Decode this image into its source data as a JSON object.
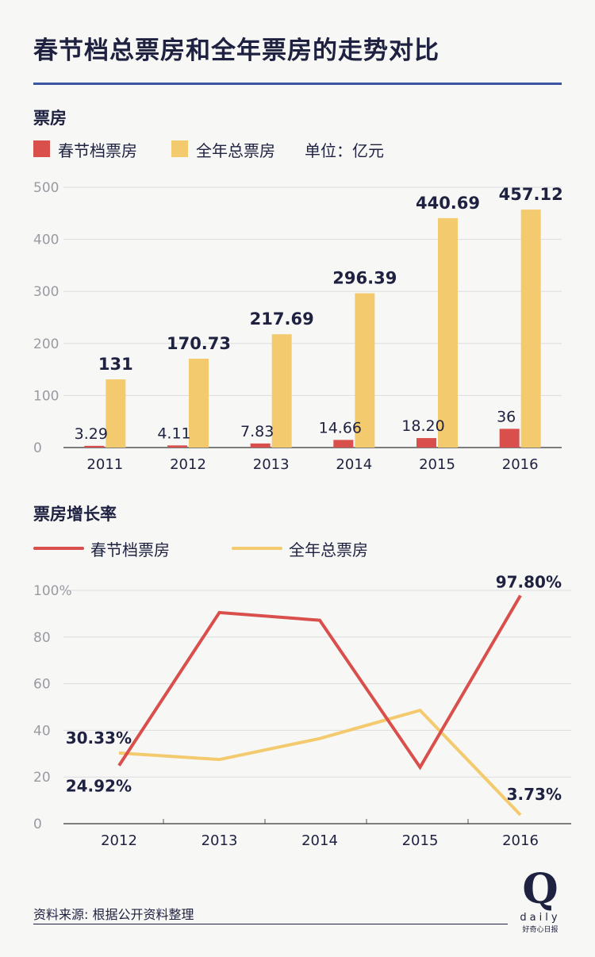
{
  "title": "春节档总票房和全年票房的走势对比",
  "colors": {
    "spring": "#d94f4c",
    "annual": "#f3cb6e",
    "accent": "#3b55a3",
    "text": "#1e2140"
  },
  "bar_section": {
    "title": "票房",
    "legend": {
      "spring": "春节档票房",
      "annual": "全年总票房",
      "unit": "单位：亿元"
    }
  },
  "line_section": {
    "title": "票房增长率",
    "legend": {
      "spring": "春节档票房",
      "annual": "全年总票房"
    }
  },
  "footer": {
    "source": "资料来源: 根据公开资料整理",
    "logo_mark": "Q",
    "logo_word": "daily",
    "logo_sub": "好奇心日报"
  },
  "chart_data": [
    {
      "type": "bar",
      "title": "票房",
      "categories": [
        "2011",
        "2012",
        "2013",
        "2014",
        "2015",
        "2016"
      ],
      "series": [
        {
          "name": "春节档票房",
          "values": [
            3.29,
            4.11,
            7.83,
            14.66,
            18.2,
            36
          ],
          "labels": [
            "3.29",
            "4.11",
            "7.83",
            "14.66",
            "18.20",
            "36"
          ]
        },
        {
          "name": "全年总票房",
          "values": [
            131,
            170.73,
            217.69,
            296.39,
            440.69,
            457.12
          ],
          "labels": [
            "131",
            "170.73",
            "217.69",
            "296.39",
            "440.69",
            "457.12"
          ]
        }
      ],
      "ylim": [
        0,
        500
      ],
      "yticks": [
        "0",
        "100",
        "200",
        "300",
        "400",
        "500"
      ],
      "unit": "单位：亿元",
      "grid": true,
      "legend_position": "top-left"
    },
    {
      "type": "line",
      "title": "票房增长率",
      "categories": [
        "2012",
        "2013",
        "2014",
        "2015",
        "2016"
      ],
      "series": [
        {
          "name": "春节档票房",
          "values": [
            24.92,
            90.5,
            87.2,
            24.2,
            97.8
          ]
        },
        {
          "name": "全年总票房",
          "values": [
            30.33,
            27.5,
            36.5,
            48.6,
            3.73
          ]
        }
      ],
      "point_labels": [
        {
          "series": 0,
          "index": 0,
          "text": "24.92%"
        },
        {
          "series": 1,
          "index": 0,
          "text": "30.33%"
        },
        {
          "series": 0,
          "index": 4,
          "text": "97.80%"
        },
        {
          "series": 1,
          "index": 4,
          "text": "3.73%"
        }
      ],
      "ylim": [
        0,
        100
      ],
      "yticks": [
        "0",
        "20",
        "40",
        "60",
        "80",
        "100%"
      ],
      "grid": true,
      "legend_position": "top-left"
    }
  ]
}
